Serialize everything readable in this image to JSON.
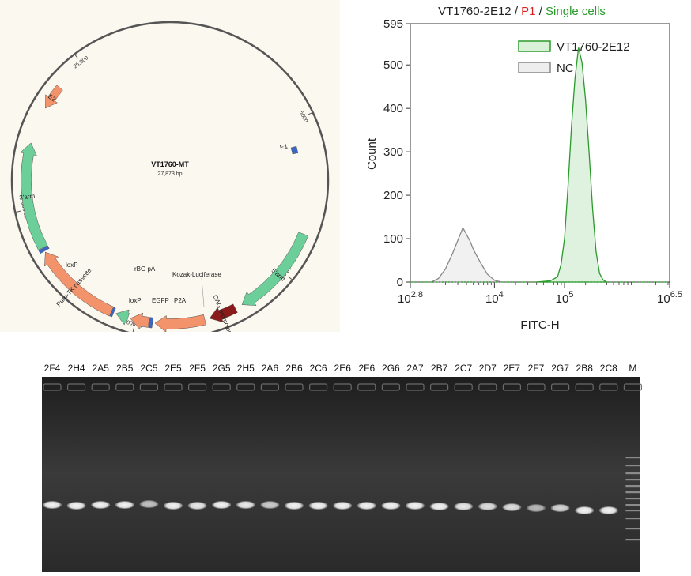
{
  "plasmid": {
    "name": "VT1760-MT",
    "size": "27,873 bp",
    "ticks": [
      "5000",
      "10,000",
      "15,000",
      "20,000",
      "25,000"
    ],
    "features": [
      {
        "id": "5arm",
        "label": "5'arm",
        "color": "#6ccf9a"
      },
      {
        "id": "cag",
        "label": "CAG promoter",
        "color": "#8b1a1a"
      },
      {
        "id": "kozak",
        "label": "Kozak-Luciferase",
        "color": "#f2936b"
      },
      {
        "id": "p2a",
        "label": "P2A",
        "color": "#3a66c8"
      },
      {
        "id": "egfp",
        "label": "EGFP",
        "color": "#f2936b"
      },
      {
        "id": "rbg",
        "label": "rBG pA",
        "color": "#6ccf9a"
      },
      {
        "id": "loxp1",
        "label": "loxP",
        "color": "#3a66c8"
      },
      {
        "id": "puro",
        "label": "Puro-TK cassette",
        "color": "#f2936b"
      },
      {
        "id": "loxp2",
        "label": "loxP",
        "color": "#3a66c8"
      },
      {
        "id": "3arm",
        "label": "3'arm",
        "color": "#6ccf9a"
      },
      {
        "id": "e2",
        "label": "E2",
        "color": "#f2936b"
      },
      {
        "id": "e1",
        "label": "E1",
        "color": "#3a66c8"
      }
    ]
  },
  "flow": {
    "title_parts": [
      {
        "text": "VT1760-2E12",
        "color": "#222222"
      },
      {
        "text": " / ",
        "color": "#222222"
      },
      {
        "text": "P1",
        "color": "#e02020"
      },
      {
        "text": " / ",
        "color": "#222222"
      },
      {
        "text": "Single cells",
        "color": "#2a9a2a"
      }
    ],
    "legend": [
      {
        "label": "VT1760-2E12",
        "stroke": "#2a9a2a",
        "fill": "#d9f0d9"
      },
      {
        "label": "NC",
        "stroke": "#888888",
        "fill": "#eeeeee"
      }
    ],
    "ylabel": "Count",
    "xlabel": "FITC-H",
    "y_ticks": [
      "0",
      "100",
      "200",
      "300",
      "400",
      "500",
      "595"
    ],
    "x_ticks": [
      {
        "base": "10",
        "exp": "2.8"
      },
      {
        "base": "10",
        "exp": "4"
      },
      {
        "base": "10",
        "exp": "5"
      },
      {
        "base": "10",
        "exp": "6.5"
      }
    ]
  },
  "chart_data": {
    "type": "area",
    "title": "VT1760-2E12 / P1 / Single cells",
    "xlabel": "FITC-H",
    "ylabel": "Count",
    "x_scale": "log10",
    "xlim": [
      2.8,
      6.5
    ],
    "ylim": [
      0,
      595
    ],
    "series": [
      {
        "name": "VT1760-2E12",
        "x": [
          4.6,
          4.8,
          4.9,
          4.95,
          5.0,
          5.05,
          5.1,
          5.15,
          5.2,
          5.25,
          5.3,
          5.35,
          5.4,
          5.45,
          5.5,
          5.55,
          5.6
        ],
        "values": [
          0,
          3,
          12,
          40,
          100,
          220,
          360,
          470,
          540,
          505,
          420,
          300,
          170,
          70,
          20,
          5,
          0
        ]
      },
      {
        "name": "NC",
        "x": [
          3.1,
          3.2,
          3.3,
          3.4,
          3.5,
          3.55,
          3.6,
          3.65,
          3.7,
          3.8,
          3.9,
          4.0,
          4.1
        ],
        "values": [
          0,
          8,
          30,
          65,
          105,
          125,
          110,
          95,
          75,
          45,
          18,
          4,
          0
        ]
      }
    ]
  },
  "gel": {
    "lanes": [
      "2F4",
      "2H4",
      "2A5",
      "2B5",
      "2C5",
      "2E5",
      "2F5",
      "2G5",
      "2H5",
      "2A6",
      "2B6",
      "2C6",
      "2E6",
      "2F6",
      "2G6",
      "2A7",
      "2B7",
      "2C7",
      "2D7",
      "2E7",
      "2F7",
      "2G7",
      "2B8",
      "2C8",
      "M"
    ]
  }
}
